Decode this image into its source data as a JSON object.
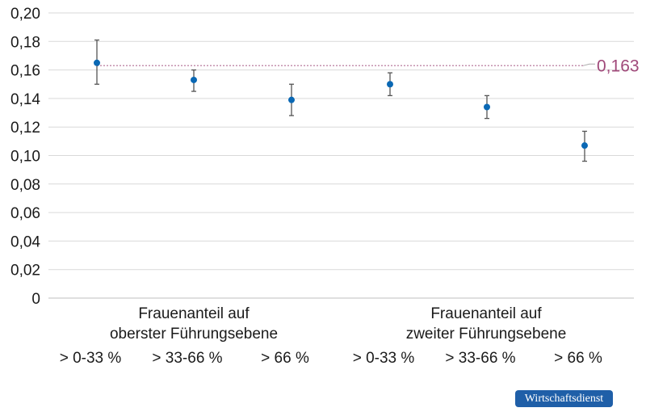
{
  "chart_data": {
    "type": "scatter",
    "title": "",
    "xlabel": "",
    "ylabel": "",
    "ylim": [
      0,
      0.2
    ],
    "yticks": [
      "0",
      "0,02",
      "0,04",
      "0,06",
      "0,08",
      "0,10",
      "0,12",
      "0,14",
      "0,16",
      "0,18",
      "0,20"
    ],
    "grid": true,
    "groups": [
      {
        "label_line1": "Frauenanteil auf",
        "label_line2": "oberster Führungsebene"
      },
      {
        "label_line1": "Frauenanteil auf",
        "label_line2": "zweiter Führungsebene"
      }
    ],
    "categories": [
      "> 0-33 %",
      "> 33-66 %",
      "> 66 %",
      "> 0-33 %",
      "> 33-66 %",
      "> 66 %"
    ],
    "values": [
      0.165,
      0.153,
      0.139,
      0.15,
      0.134,
      0.107
    ],
    "error_low": [
      0.15,
      0.145,
      0.128,
      0.142,
      0.126,
      0.096
    ],
    "error_high": [
      0.181,
      0.16,
      0.15,
      0.158,
      0.142,
      0.117
    ],
    "reference_line": {
      "value": 0.163,
      "label": "0,163"
    },
    "colors": {
      "point": "#0a68b4",
      "error_bar": "#555555",
      "reference": "#a0497a",
      "grid": "#d9d9d9"
    }
  },
  "footer": {
    "brand": "Wirtschaftsdienst"
  }
}
